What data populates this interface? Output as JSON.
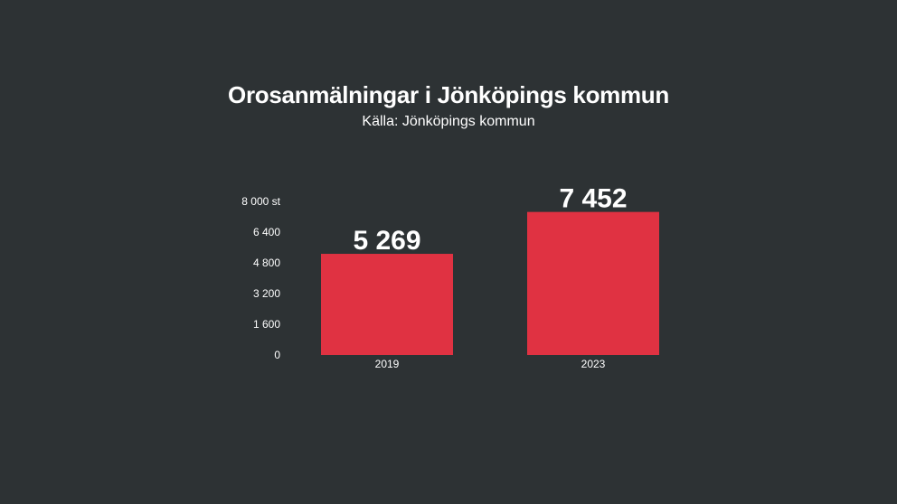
{
  "chart_data": {
    "type": "bar",
    "title": "Orosanmälningar i Jönköpings kommun",
    "subtitle": "Källa: Jönköpings kommun",
    "categories": [
      "2019",
      "2023"
    ],
    "values": [
      5269,
      7452
    ],
    "data_labels": [
      "5 269",
      "7 452"
    ],
    "y_ticks": [
      0,
      1600,
      3200,
      4800,
      6400,
      8000
    ],
    "y_tick_labels": [
      "0",
      "1 600",
      "3 200",
      "4 800",
      "6 400",
      "8 000 st"
    ],
    "ylim": [
      0,
      8000
    ],
    "grid": false,
    "legend": "none",
    "bar_color": "#e03242",
    "background_color": "#2d3234",
    "text_color": "#ffffff"
  }
}
